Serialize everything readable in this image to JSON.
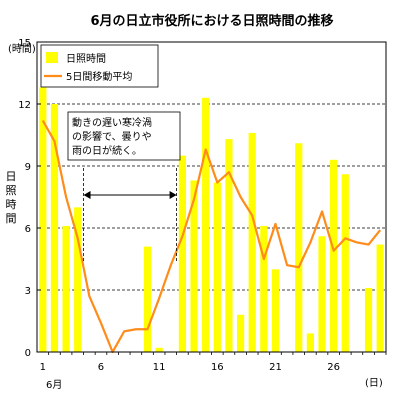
{
  "chart_data": {
    "type": "bar",
    "title": "6月の日立市役所における日照時間の推移",
    "ylabel": "日照時間",
    "yunit": "(時間)",
    "xunit": "(日)",
    "month_label": "6月",
    "ylim": [
      0,
      15
    ],
    "yticks": [
      0,
      3,
      6,
      9,
      12,
      15
    ],
    "xlim": [
      1,
      30
    ],
    "xticks": [
      1,
      6,
      11,
      16,
      21,
      26
    ],
    "grid": true,
    "legend_position": "top-left",
    "x": [
      1,
      2,
      3,
      4,
      5,
      6,
      7,
      8,
      9,
      10,
      11,
      12,
      13,
      14,
      15,
      16,
      17,
      18,
      19,
      20,
      21,
      22,
      23,
      24,
      25,
      26,
      27,
      28,
      29,
      30
    ],
    "series": [
      {
        "name": "日照時間",
        "kind": "bar",
        "color": "#ffff00",
        "values": [
          12.8,
          12.0,
          6.1,
          7.0,
          0.0,
          0.0,
          0.0,
          0.0,
          0.0,
          5.1,
          0.2,
          0.0,
          9.5,
          8.3,
          12.3,
          8.2,
          10.3,
          1.8,
          10.6,
          6.1,
          4.0,
          0.0,
          10.1,
          0.9,
          5.6,
          9.3,
          8.6,
          0.0,
          3.1,
          5.2
        ]
      },
      {
        "name": "5日間移動平均",
        "kind": "line",
        "color": "#ff8c1a",
        "values": [
          11.2,
          10.2,
          7.5,
          5.5,
          2.7,
          1.4,
          0.0,
          1.0,
          1.1,
          1.1,
          2.6,
          4.2,
          5.6,
          7.4,
          9.8,
          8.2,
          8.7,
          7.5,
          6.6,
          4.5,
          6.2,
          4.2,
          4.1,
          5.3,
          6.8,
          4.9,
          5.5,
          5.3,
          5.2,
          5.9
        ]
      }
    ],
    "annotation": {
      "lines": [
        "動きの遅い寒冷渦",
        "の影響で、曇りや",
        "雨の日が続く。"
      ],
      "arrow_from_day": 4,
      "arrow_to_day": 12
    }
  }
}
